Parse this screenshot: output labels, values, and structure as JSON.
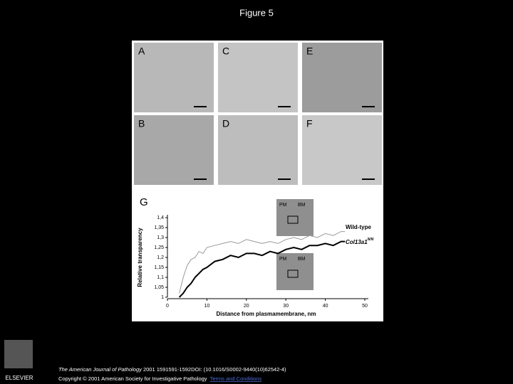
{
  "header": {
    "title": "Figure 5"
  },
  "panels": [
    "A",
    "B",
    "C",
    "D",
    "E",
    "F"
  ],
  "chart_data": {
    "type": "line",
    "panel_label": "G",
    "xlabel": "Distance from plasmamembrane, nm",
    "ylabel": "Relative transparency",
    "x": [
      3,
      4,
      5,
      6,
      7,
      8,
      9,
      10,
      12,
      14,
      16,
      18,
      20,
      22,
      24,
      26,
      28,
      30,
      32,
      34,
      36,
      38,
      40,
      42,
      44,
      45
    ],
    "series": [
      {
        "name": "Wild-type",
        "color": "#999999",
        "values": [
          1.02,
          1.1,
          1.16,
          1.19,
          1.2,
          1.23,
          1.22,
          1.25,
          1.26,
          1.27,
          1.28,
          1.27,
          1.29,
          1.28,
          1.27,
          1.28,
          1.27,
          1.29,
          1.3,
          1.29,
          1.31,
          1.3,
          1.32,
          1.31,
          1.33,
          1.33
        ]
      },
      {
        "name": "Col13a1",
        "superscript": "N/N",
        "color": "#000000",
        "values": [
          1.0,
          1.02,
          1.05,
          1.07,
          1.1,
          1.12,
          1.14,
          1.15,
          1.18,
          1.19,
          1.21,
          1.2,
          1.22,
          1.22,
          1.21,
          1.23,
          1.22,
          1.24,
          1.25,
          1.24,
          1.26,
          1.26,
          1.27,
          1.26,
          1.28,
          1.28
        ]
      }
    ],
    "xlim": [
      0,
      50
    ],
    "xticks": [
      0,
      10,
      20,
      30,
      40,
      50
    ],
    "ylim": [
      1,
      1.4
    ],
    "yticks": [
      1,
      {
        "value": 1.05,
        "label": "1,05"
      },
      {
        "value": 1.1,
        "label": "1,1"
      },
      {
        "value": 1.15,
        "label": "1,15"
      },
      {
        "value": 1.2,
        "label": "1,2"
      },
      {
        "value": 1.25,
        "label": "1,25"
      },
      {
        "value": 1.3,
        "label": "1,3"
      },
      {
        "value": 1.35,
        "label": "1,35"
      },
      {
        "value": 1.4,
        "label": "1,4"
      }
    ],
    "inset_labels": [
      "PM",
      "BM",
      "PM",
      "BM"
    ]
  },
  "footer": {
    "journal": "The American Journal of Pathology",
    "citation": " 2001 1591591-1592DOI: (10.1016/S0002-9440(10)62542-4)",
    "copyright": "Copyright © 2001 American Society for Investigative Pathology",
    "link": "Terms and Conditions"
  },
  "logo": "ELSEVIER"
}
